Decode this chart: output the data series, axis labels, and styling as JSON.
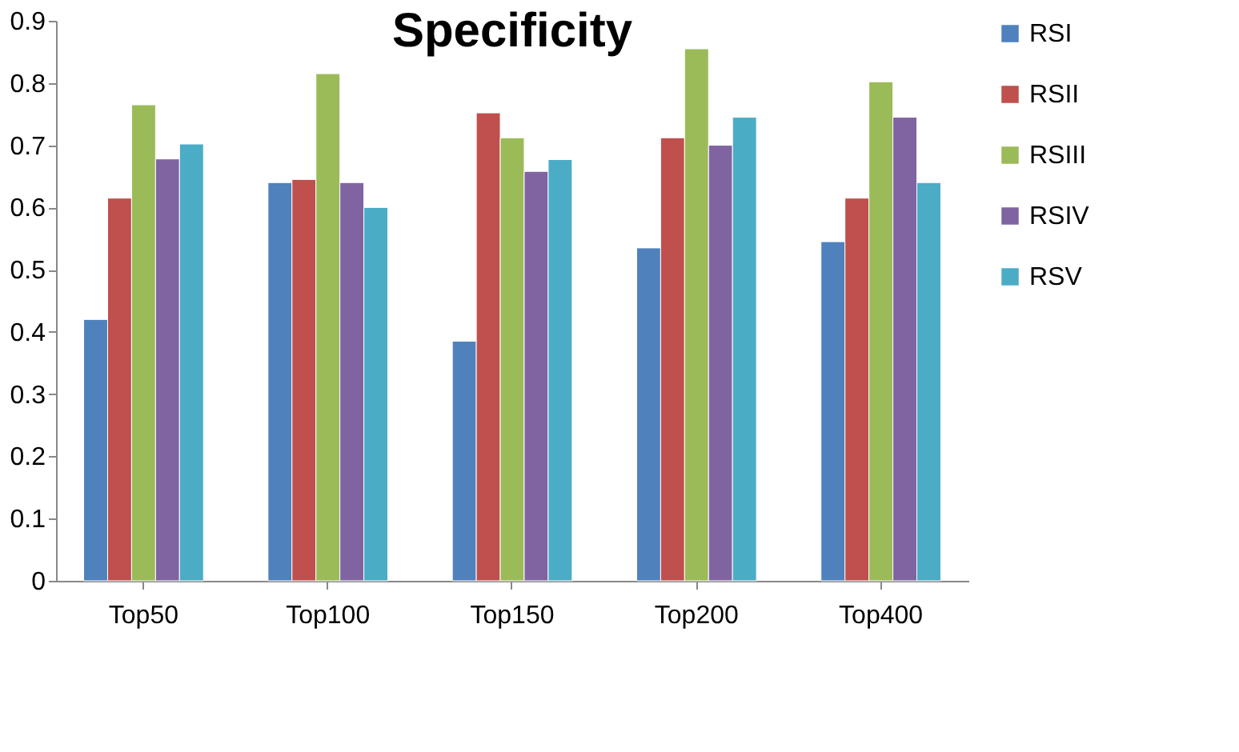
{
  "chart_data": {
    "type": "bar",
    "title": "Specificity",
    "categories": [
      "Top50",
      "Top100",
      "Top150",
      "Top200",
      "Top400"
    ],
    "series": [
      {
        "name": "RSI",
        "color": "#4f81bd",
        "values": [
          0.42,
          0.64,
          0.385,
          0.535,
          0.545
        ]
      },
      {
        "name": "RSII",
        "color": "#c0504d",
        "values": [
          0.615,
          0.645,
          0.752,
          0.712,
          0.615
        ]
      },
      {
        "name": "RSIII",
        "color": "#9bbb59",
        "values": [
          0.765,
          0.815,
          0.712,
          0.855,
          0.802
        ]
      },
      {
        "name": "RSIV",
        "color": "#8064a2",
        "values": [
          0.678,
          0.64,
          0.658,
          0.7,
          0.745
        ]
      },
      {
        "name": "RSV",
        "color": "#4bacc6",
        "values": [
          0.702,
          0.6,
          0.677,
          0.745,
          0.64
        ]
      }
    ],
    "ylim": [
      0,
      0.9
    ],
    "yticks": [
      {
        "value": 0,
        "label": "0"
      },
      0.1,
      0.2,
      0.3,
      0.4,
      0.5,
      0.6,
      0.7,
      0.8,
      0.9
    ],
    "grid": false,
    "legend": "right"
  }
}
